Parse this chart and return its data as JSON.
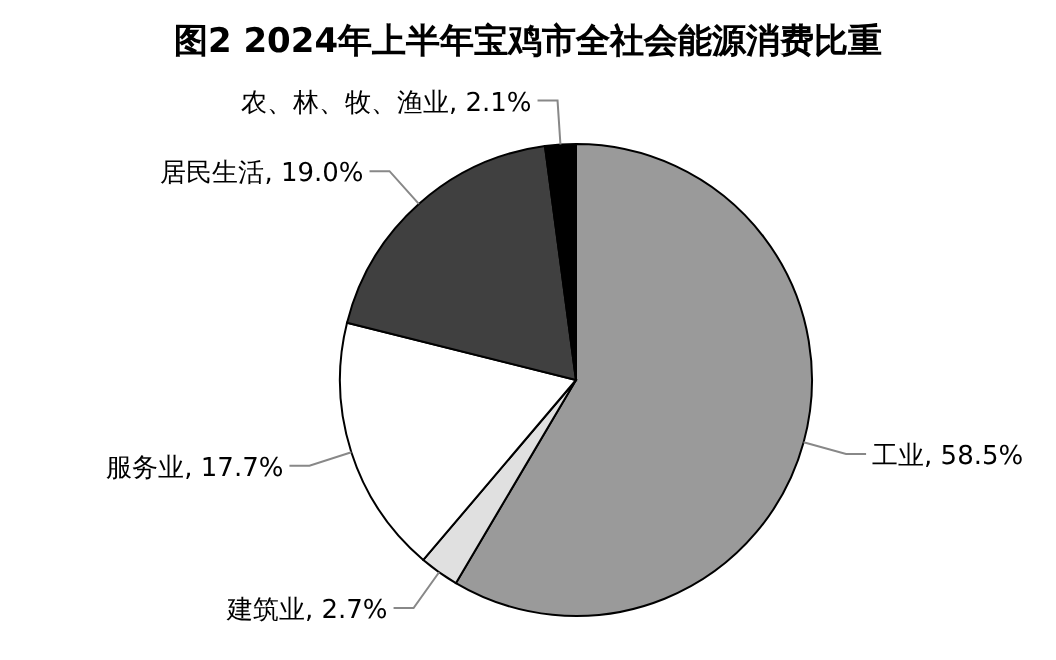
{
  "chart_data": {
    "type": "pie",
    "title": "图2  2024年上半年宝鸡市全社会能源消费比重",
    "categories": [
      "工业",
      "建筑业",
      "服务业",
      "居民生活",
      "农、林、牧、渔业"
    ],
    "values": [
      58.5,
      2.7,
      17.7,
      19.0,
      2.1
    ],
    "value_labels": [
      "58.5%",
      "2.7%",
      "17.7%",
      "19.0%",
      "2.1%"
    ],
    "colors": [
      "#9a9a9a",
      "#e0e0e0",
      "#ffffff",
      "#404040",
      "#000000"
    ]
  }
}
